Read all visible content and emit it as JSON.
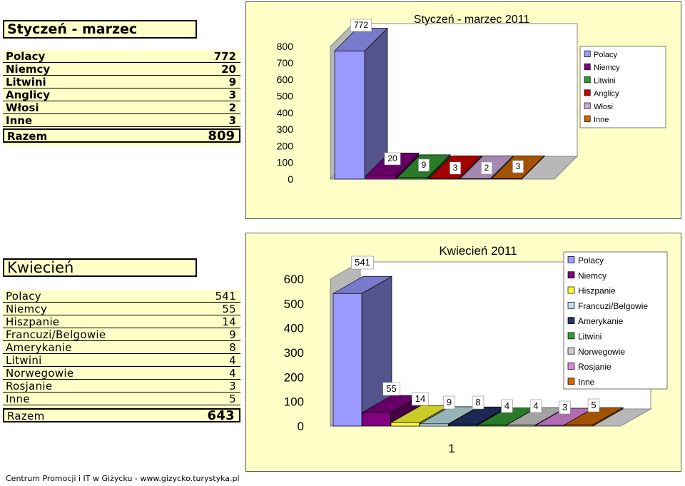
{
  "section1": {
    "title": "Styczeń - marzec",
    "rows": [
      {
        "label": "Polacy",
        "value": "772"
      },
      {
        "label": "Niemcy",
        "value": "20"
      },
      {
        "label": "Litwini",
        "value": "9"
      },
      {
        "label": "Anglicy",
        "value": "3"
      },
      {
        "label": "Włosi",
        "value": "2"
      },
      {
        "label": "Inne",
        "value": "3"
      }
    ],
    "total": {
      "label": "Razem",
      "value": "809"
    }
  },
  "section2": {
    "title": "Kwiecień",
    "rows": [
      {
        "label": "Polacy",
        "value": "541"
      },
      {
        "label": "Niemcy",
        "value": "55"
      },
      {
        "label": "Hiszpanie",
        "value": "14"
      },
      {
        "label": "Francuzi/Belgowie",
        "value": "9"
      },
      {
        "label": "Amerykanie",
        "value": "8"
      },
      {
        "label": "Litwini",
        "value": "4"
      },
      {
        "label": "Norwegowie",
        "value": "4"
      },
      {
        "label": "Rosjanie",
        "value": "3"
      },
      {
        "label": "Inne",
        "value": "5"
      }
    ],
    "total": {
      "label": "Razem",
      "value": "643"
    }
  },
  "chart_data": [
    {
      "type": "bar",
      "title": "Styczeń - marzec 2011",
      "categories": [
        "Polacy",
        "Niemcy",
        "Litwini",
        "Anglicy",
        "Włosi",
        "Inne"
      ],
      "values": [
        772,
        20,
        9,
        3,
        2,
        3
      ],
      "colors": [
        "#9999ff",
        "#800080",
        "#339933",
        "#cc0000",
        "#ccaadd",
        "#cc6600"
      ],
      "yticks": [
        "0",
        "100",
        "200",
        "300",
        "400",
        "500",
        "600",
        "700",
        "800"
      ],
      "ylim": [
        0,
        800
      ],
      "legend": "right"
    },
    {
      "type": "bar",
      "title": "Kwiecień 2011",
      "categories": [
        "Polacy",
        "Niemcy",
        "Hiszpanie",
        "Francuzi/Belgowie",
        "Amerykanie",
        "Litwini",
        "Norwegowie",
        "Rosjanie",
        "Inne"
      ],
      "values": [
        541,
        55,
        14,
        9,
        8,
        4,
        4,
        3,
        5
      ],
      "colors": [
        "#9999ff",
        "#800080",
        "#ffff33",
        "#bbe0e8",
        "#223366",
        "#339933",
        "#cccccc",
        "#dd88dd",
        "#cc6600"
      ],
      "yticks": [
        "0",
        "100",
        "200",
        "300",
        "400",
        "500",
        "600"
      ],
      "ylim": [
        0,
        600
      ],
      "xtick": "1",
      "legend": "right"
    }
  ],
  "footer": "Centrum Promocji i IT w Giżycku - www.gizycko.turystyka.pl"
}
